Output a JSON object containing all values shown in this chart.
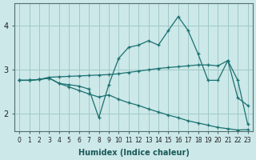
{
  "xlabel": "Humidex (Indice chaleur)",
  "bg_color": "#cce8e8",
  "grid_color": "#a0c8c8",
  "line_color": "#1a7070",
  "xlim_min": -0.5,
  "xlim_max": 23.5,
  "ylim_min": 1.6,
  "ylim_max": 4.5,
  "yticks": [
    2,
    3,
    4
  ],
  "xticks": [
    0,
    1,
    2,
    3,
    4,
    5,
    6,
    7,
    8,
    9,
    10,
    11,
    12,
    13,
    14,
    15,
    16,
    17,
    18,
    19,
    20,
    21,
    22,
    23
  ],
  "line1_x": [
    0,
    1,
    2,
    3,
    4,
    5,
    6,
    7,
    8,
    9,
    10,
    11,
    12,
    13,
    14,
    15,
    16,
    17,
    18,
    19,
    20,
    21,
    22,
    23
  ],
  "line1_y": [
    2.75,
    2.75,
    2.77,
    2.82,
    2.83,
    2.84,
    2.85,
    2.86,
    2.87,
    2.88,
    2.9,
    2.93,
    2.96,
    2.99,
    3.02,
    3.04,
    3.06,
    3.08,
    3.1,
    3.1,
    3.08,
    3.2,
    2.75,
    1.75
  ],
  "line2_x": [
    0,
    1,
    2,
    3,
    4,
    5,
    6,
    7,
    8,
    9,
    10,
    11,
    12,
    13,
    14,
    15,
    16,
    17,
    18,
    19,
    20,
    21,
    22,
    23
  ],
  "line2_y": [
    2.75,
    2.75,
    2.77,
    2.8,
    2.68,
    2.65,
    2.62,
    2.55,
    1.9,
    2.65,
    3.25,
    3.5,
    3.55,
    3.65,
    3.55,
    3.88,
    4.2,
    3.88,
    3.35,
    2.75,
    2.75,
    3.2,
    2.35,
    2.18
  ],
  "line3_x": [
    0,
    1,
    2,
    3,
    4,
    5,
    6,
    7,
    8,
    9,
    10,
    11,
    12,
    13,
    14,
    15,
    16,
    17,
    18,
    19,
    20,
    21,
    22,
    23
  ],
  "line3_y": [
    2.75,
    2.75,
    2.77,
    2.8,
    2.68,
    2.6,
    2.52,
    2.44,
    2.37,
    2.42,
    2.32,
    2.24,
    2.18,
    2.1,
    2.03,
    1.96,
    1.9,
    1.83,
    1.78,
    1.73,
    1.68,
    1.65,
    1.62,
    1.63
  ]
}
